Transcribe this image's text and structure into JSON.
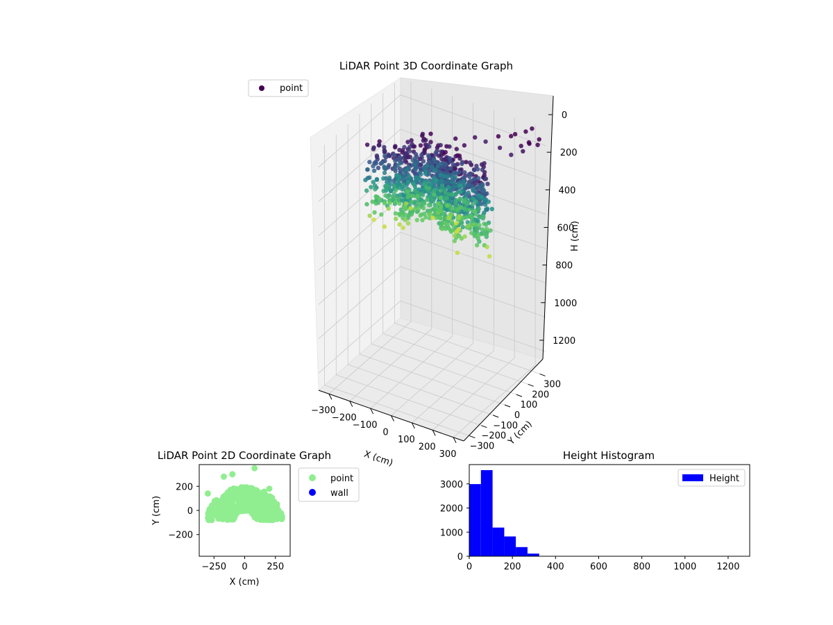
{
  "chart_data": [
    {
      "type": "scatter",
      "projection": "3d",
      "title": "LiDAR Point 3D Coordinate Graph",
      "xlabel": "X (cm)",
      "ylabel": "Y (cm)",
      "zlabel": "H (cm)",
      "xticks": [
        "−300",
        "−200",
        "−100",
        "0",
        "100",
        "200",
        "300"
      ],
      "yticks": [
        "−300",
        "−200",
        "−100",
        "0",
        "100",
        "200",
        "300"
      ],
      "zticks": [
        "0",
        "200",
        "400",
        "600",
        "800",
        "1000",
        "1200"
      ],
      "xlim": [
        -350,
        350
      ],
      "ylim": [
        -350,
        350
      ],
      "zlim": [
        1300,
        -100
      ],
      "z_inverted": true,
      "colormap": "viridis",
      "legend": {
        "labels": [
          "point"
        ],
        "placement": "top-left",
        "marker_color": "#440154"
      },
      "grid": true
    },
    {
      "type": "scatter",
      "title": "LiDAR Point 2D Coordinate Graph",
      "xlabel": "X (cm)",
      "ylabel": "Y (cm)",
      "xticks": [
        "−250",
        "0",
        "250"
      ],
      "yticks": [
        "−200",
        "0",
        "200"
      ],
      "xlim": [
        -370,
        370
      ],
      "ylim": [
        -380,
        380
      ],
      "series": [
        {
          "name": "point",
          "color": "#90ee90"
        },
        {
          "name": "wall",
          "color": "#0000ff"
        }
      ],
      "legend": {
        "placement": "outside-right"
      }
    },
    {
      "type": "bar",
      "title": "Height Histogram",
      "xticks": [
        "0",
        "200",
        "400",
        "600",
        "800",
        "1000",
        "1200"
      ],
      "yticks": [
        "0",
        "1000",
        "2000",
        "3000"
      ],
      "xlim": [
        0,
        1300
      ],
      "ylim": [
        0,
        3800
      ],
      "bin_edges": [
        0,
        54,
        108,
        162,
        216,
        270,
        324
      ],
      "values": [
        2990,
        3570,
        1190,
        820,
        380,
        110
      ],
      "color": "#0000ff",
      "legend": {
        "labels": [
          "Height"
        ],
        "placement": "top-right"
      }
    }
  ]
}
